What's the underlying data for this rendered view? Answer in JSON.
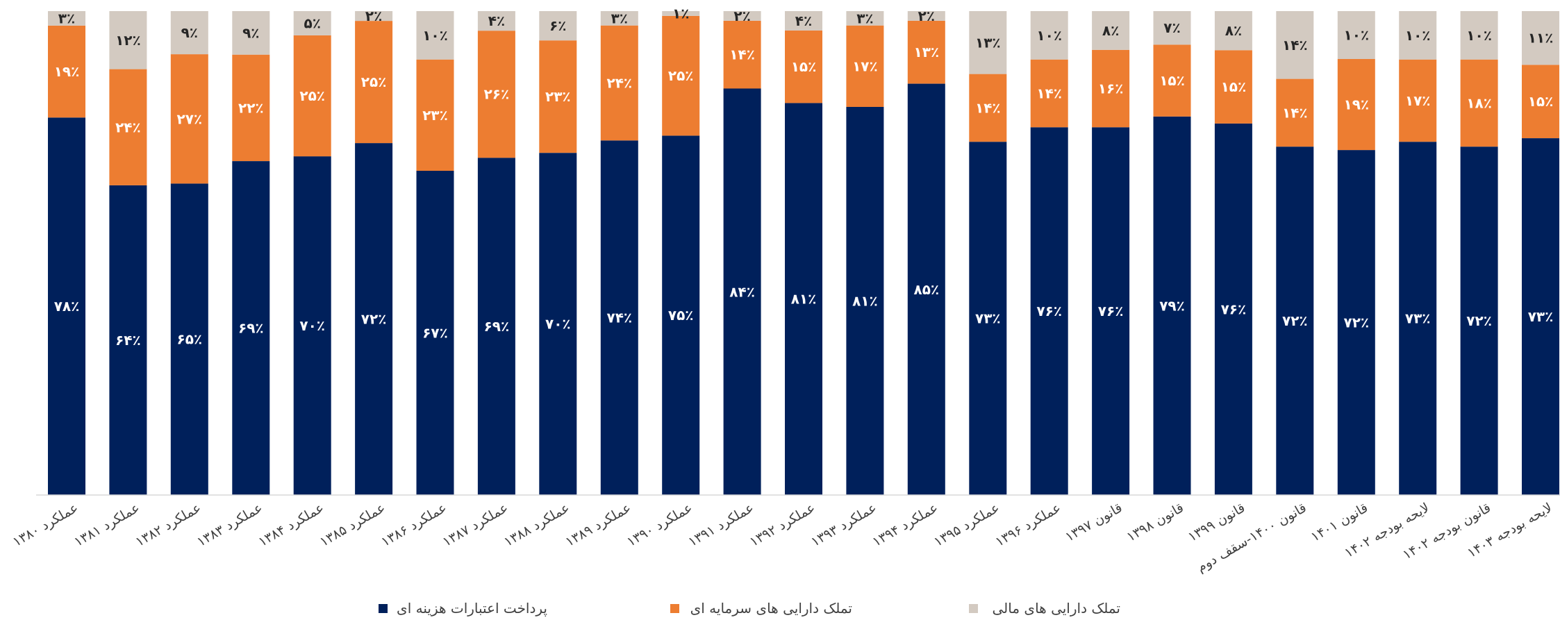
{
  "chart_data": {
    "type": "bar",
    "stacked": true,
    "percent": true,
    "categories": [
      "عملکرد ۱۳۸۰",
      "عملکرد ۱۳۸۱",
      "عملکرد ۱۳۸۲",
      "عملکرد ۱۳۸۳",
      "عملکرد ۱۳۸۴",
      "عملکرد ۱۳۸۵",
      "عملکرد ۱۳۸۶",
      "عملکرد ۱۳۸۷",
      "عملکرد ۱۳۸۸",
      "عملکرد ۱۳۸۹",
      "عملکرد ۱۳۹۰",
      "عملکرد ۱۳۹۱",
      "عملکرد ۱۳۹۲",
      "عملکرد ۱۳۹۳",
      "عملکرد ۱۳۹۴",
      "عملکرد ۱۳۹۵",
      "عملکرد ۱۳۹۶",
      "قانون ۱۳۹۷",
      "قانون ۱۳۹۸",
      "قانون ۱۳۹۹",
      "قانون ۱۴۰۰-سقف دوم",
      "قانون ۱۴۰۱",
      "لایحه بودجه ۱۴۰۲",
      "قانون بودجه ۱۴۰۲",
      "لایحه بودجه ۱۴۰۳"
    ],
    "series": [
      {
        "name": "پرداخت اعتبارات هزینه ای",
        "color": "#00205b",
        "values": [
          78,
          64,
          65,
          69,
          70,
          72,
          67,
          69,
          70,
          74,
          75,
          84,
          81,
          81,
          85,
          73,
          76,
          76,
          79,
          76,
          72,
          72,
          73,
          72,
          73
        ],
        "labels": [
          "۷۸٪",
          "۶۴٪",
          "۶۵٪",
          "۶۹٪",
          "۷۰٪",
          "۷۲٪",
          "۶۷٪",
          "۶۹٪",
          "۷۰٪",
          "۷۴٪",
          "۷۵٪",
          "۸۴٪",
          "۸۱٪",
          "۸۱٪",
          "۸۵٪",
          "۷۳٪",
          "۷۶٪",
          "۷۶٪",
          "۷۹٪",
          "۷۶٪",
          "۷۲٪",
          "۷۲٪",
          "۷۳٪",
          "۷۲٪",
          "۷۳٪"
        ]
      },
      {
        "name": "تملک دارایی های سرمایه ای",
        "color": "#ed7d31",
        "values": [
          19,
          24,
          27,
          22,
          25,
          25,
          23,
          26,
          23,
          24,
          25,
          14,
          15,
          17,
          13,
          14,
          14,
          16,
          15,
          15,
          14,
          19,
          17,
          18,
          15
        ],
        "labels": [
          "۱۹٪",
          "۲۴٪",
          "۲۷٪",
          "۲۲٪",
          "۲۵٪",
          "۲۵٪",
          "۲۳٪",
          "۲۶٪",
          "۲۳٪",
          "۲۴٪",
          "۲۵٪",
          "۱۴٪",
          "۱۵٪",
          "۱۷٪",
          "۱۳٪",
          "۱۴٪",
          "۱۴٪",
          "۱۶٪",
          "۱۵٪",
          "۱۵٪",
          "۱۴٪",
          "۱۹٪",
          "۱۷٪",
          "۱۸٪",
          "۱۵٪"
        ]
      },
      {
        "name": "تملک دارایی های مالی",
        "color": "#d3cac1",
        "values": [
          3,
          12,
          9,
          9,
          5,
          2,
          10,
          4,
          6,
          3,
          1,
          2,
          4,
          3,
          2,
          13,
          10,
          8,
          7,
          8,
          14,
          10,
          10,
          10,
          11
        ],
        "labels": [
          "۳٪",
          "۱۲٪",
          "۹٪",
          "۹٪",
          "۵٪",
          "۲٪",
          "۱۰٪",
          "۴٪",
          "۶٪",
          "۳٪",
          "۱٪",
          "۲٪",
          "۴٪",
          "۳٪",
          "۲٪",
          "۱۳٪",
          "۱۰٪",
          "۸٪",
          "۷٪",
          "۸٪",
          "۱۴٪",
          "۱۰٪",
          "۱۰٪",
          "۱۰٪",
          "۱۱٪"
        ]
      }
    ],
    "ylim": [
      0,
      100
    ],
    "grid": false,
    "legend_position": "bottom"
  }
}
